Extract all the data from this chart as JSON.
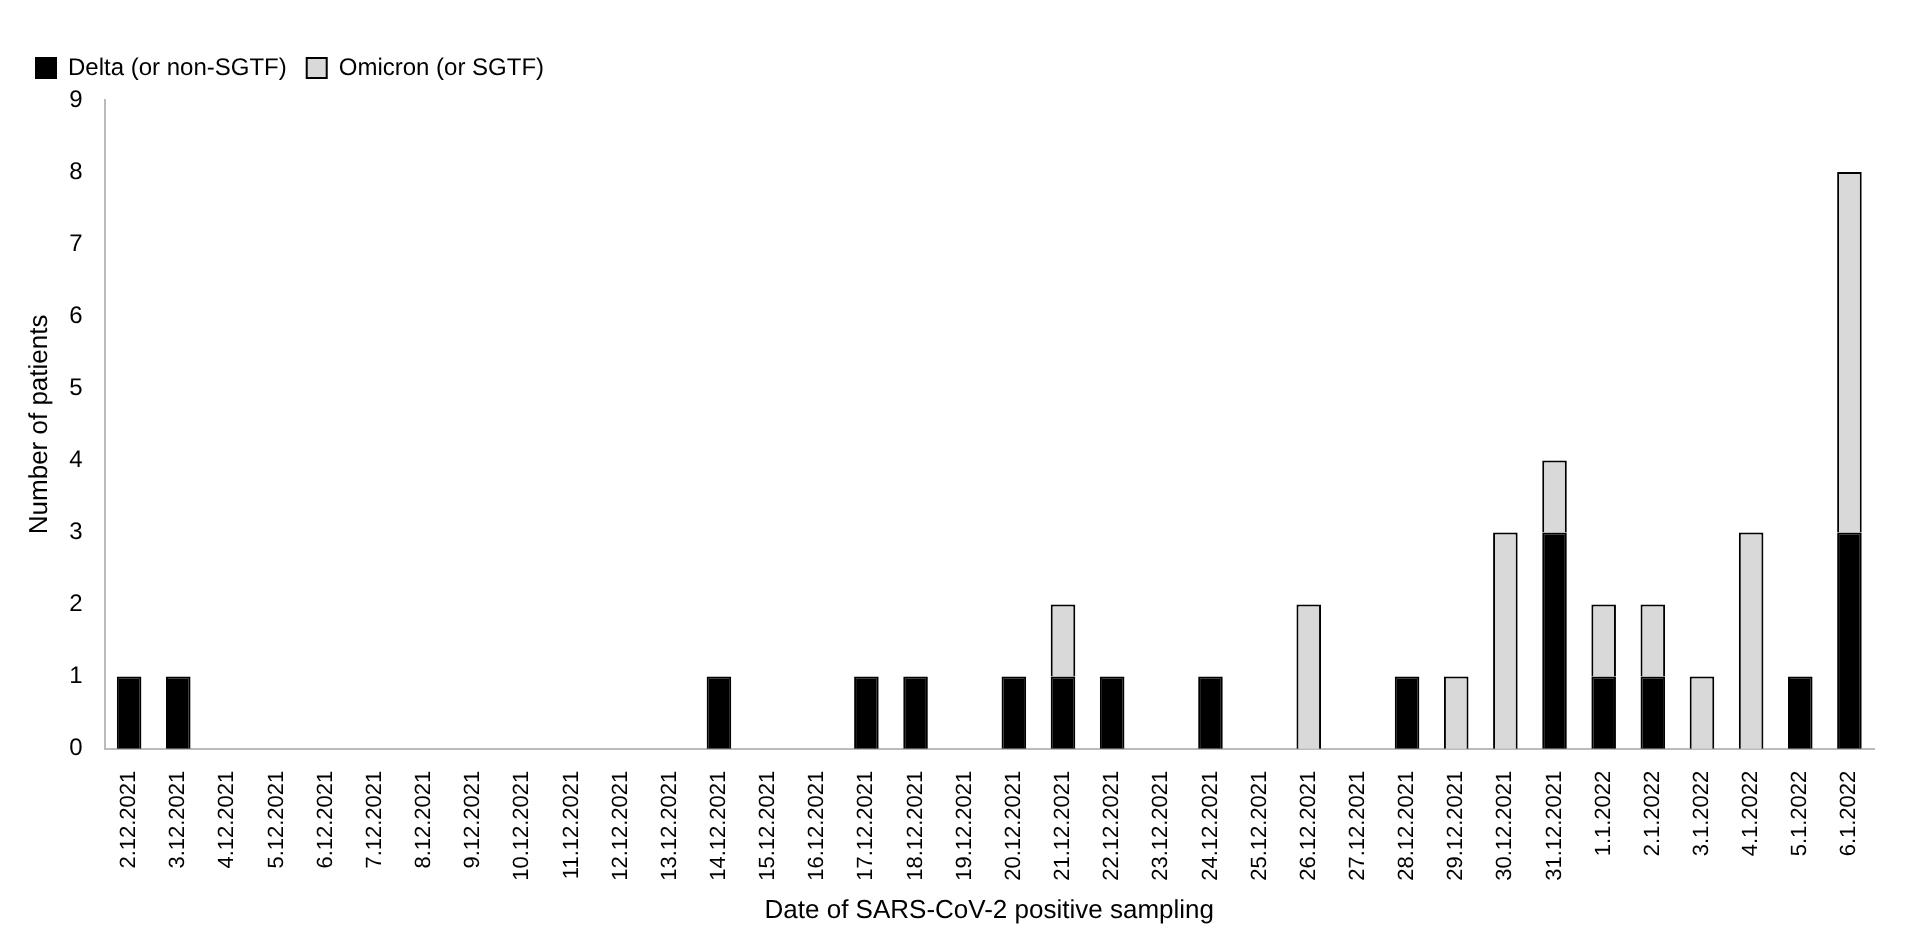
{
  "chart_data": {
    "type": "bar",
    "stacked": true,
    "xlabel": "Date of SARS-CoV-2 positive sampling",
    "ylabel": "Number of patients",
    "categories": [
      "2.12.2021",
      "3.12.2021",
      "4.12.2021",
      "5.12.2021",
      "6.12.2021",
      "7.12.2021",
      "8.12.2021",
      "9.12.2021",
      "10.12.2021",
      "11.12.2021",
      "12.12.2021",
      "13.12.2021",
      "14.12.2021",
      "15.12.2021",
      "16.12.2021",
      "17.12.2021",
      "18.12.2021",
      "19.12.2021",
      "20.12.2021",
      "21.12.2021",
      "22.12.2021",
      "23.12.2021",
      "24.12.2021",
      "25.12.2021",
      "26.12.2021",
      "27.12.2021",
      "28.12.2021",
      "29.12.2021",
      "30.12.2021",
      "31.12.2021",
      "1.1.2022",
      "2.1.2022",
      "3.1.2022",
      "4.1.2022",
      "5.1.2022",
      "6.1.2022"
    ],
    "series": [
      {
        "name": "Delta (or non-SGTF)",
        "color": "#000000",
        "values": [
          1,
          1,
          0,
          0,
          0,
          0,
          0,
          0,
          0,
          0,
          0,
          0,
          1,
          0,
          0,
          1,
          1,
          0,
          1,
          1,
          1,
          0,
          1,
          0,
          0,
          0,
          1,
          0,
          0,
          3,
          1,
          1,
          0,
          0,
          1,
          3
        ]
      },
      {
        "name": "Omicron (or SGTF)",
        "color": "#d9d9d9",
        "values": [
          0,
          0,
          0,
          0,
          0,
          0,
          0,
          0,
          0,
          0,
          0,
          0,
          0,
          0,
          0,
          0,
          0,
          0,
          0,
          1,
          0,
          0,
          0,
          0,
          2,
          0,
          0,
          1,
          3,
          1,
          1,
          1,
          1,
          3,
          0,
          5
        ]
      }
    ],
    "ylim": [
      0,
      9
    ],
    "yticks": [
      0,
      1,
      2,
      3,
      4,
      5,
      6,
      7,
      8,
      9
    ],
    "grid": false,
    "legend": "top left"
  }
}
